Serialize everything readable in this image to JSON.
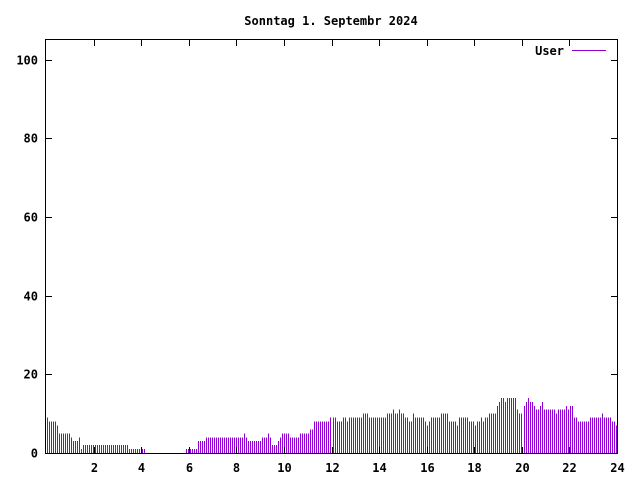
{
  "chart_data": {
    "type": "bar",
    "title": "Sonntag 1. Septembr 2024",
    "xlabel": "",
    "ylabel": "",
    "xlim": [
      0,
      24
    ],
    "ylim": [
      0,
      105
    ],
    "xticks": [
      2,
      4,
      6,
      8,
      10,
      12,
      14,
      16,
      18,
      20,
      22,
      24
    ],
    "xtick_labels": [
      "2",
      "4",
      "6",
      "8",
      "10",
      "12",
      "14",
      "16",
      "18",
      "20",
      "22",
      "24"
    ],
    "yticks": [
      0,
      20,
      40,
      60,
      80,
      100
    ],
    "ytick_labels": [
      "0",
      "20",
      "40",
      "60",
      "80",
      "100"
    ],
    "grid": false,
    "legend": {
      "position": "top-right"
    },
    "series": [
      {
        "name": "User",
        "color": "#9400d3",
        "values": [
          9,
          8,
          8,
          8,
          8,
          7,
          5,
          5,
          5,
          5,
          5,
          5,
          4,
          3,
          3,
          3,
          4,
          1,
          2,
          2,
          2,
          2,
          2,
          2,
          2,
          2,
          2,
          2,
          2,
          2,
          2,
          2,
          2,
          2,
          2,
          2,
          2,
          2,
          2,
          2,
          2,
          1,
          1,
          1,
          1,
          1,
          1,
          1,
          1,
          0,
          0,
          0,
          0,
          0,
          0,
          0,
          0,
          0,
          0,
          0,
          0,
          0,
          0,
          0,
          0,
          0,
          0,
          0,
          0,
          1,
          1,
          1,
          1,
          1,
          1,
          3,
          3,
          3,
          3,
          4,
          4,
          4,
          4,
          4,
          4,
          4,
          4,
          4,
          4,
          4,
          4,
          4,
          4,
          4,
          4,
          4,
          4,
          4,
          5,
          4,
          3,
          3,
          3,
          3,
          3,
          3,
          3,
          4,
          4,
          4,
          5,
          4,
          2,
          2,
          2,
          3,
          4,
          5,
          5,
          5,
          5,
          4,
          4,
          4,
          4,
          4,
          5,
          5,
          5,
          5,
          5,
          6,
          6,
          8,
          8,
          8,
          8,
          8,
          8,
          8,
          8,
          9,
          9,
          9,
          8,
          8,
          8,
          9,
          9,
          8,
          9,
          9,
          9,
          9,
          9,
          9,
          9,
          10,
          10,
          10,
          9,
          9,
          9,
          9,
          9,
          9,
          9,
          9,
          9,
          10,
          10,
          10,
          11,
          10,
          10,
          11,
          10,
          10,
          9,
          9,
          8,
          8,
          10,
          9,
          9,
          9,
          9,
          9,
          8,
          7,
          8,
          9,
          9,
          9,
          9,
          9,
          10,
          10,
          10,
          10,
          8,
          8,
          8,
          8,
          7,
          9,
          9,
          9,
          9,
          9,
          8,
          8,
          8,
          7,
          8,
          8,
          9,
          8,
          9,
          9,
          10,
          10,
          10,
          10,
          12,
          13,
          14,
          14,
          13,
          14,
          14,
          14,
          14,
          14,
          11,
          10,
          10,
          12,
          13,
          14,
          13,
          13,
          12,
          11,
          11,
          12,
          13,
          11,
          11,
          11,
          11,
          11,
          11,
          10,
          11,
          11,
          11,
          11,
          12,
          11,
          12,
          12,
          9,
          9,
          8,
          8,
          8,
          8,
          8,
          8,
          9,
          9,
          9,
          9,
          9,
          9,
          10,
          9,
          9,
          9,
          9,
          8,
          8,
          7
        ]
      }
    ]
  }
}
